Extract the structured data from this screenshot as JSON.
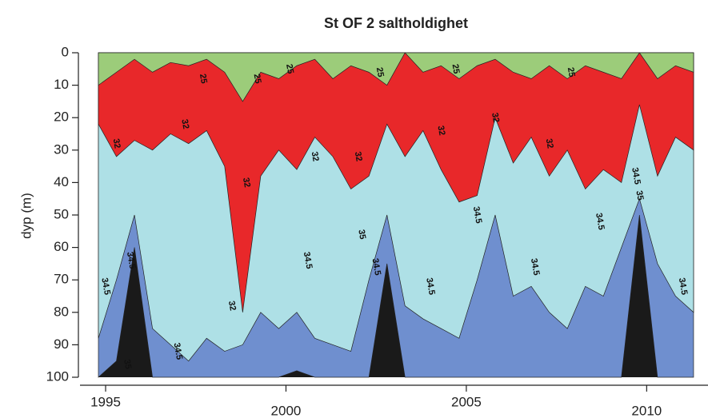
{
  "chart_data": {
    "type": "contour",
    "title": "St OF 2 saltholdighet",
    "y_label": "dyp (m)",
    "x": [
      1994.8,
      1995.3,
      1995.8,
      1996.3,
      1996.8,
      1997.3,
      1997.8,
      1998.3,
      1998.8,
      1999.3,
      1999.8,
      2000.3,
      2000.8,
      2001.3,
      2001.8,
      2002.3,
      2002.8,
      2003.3,
      2003.8,
      2004.3,
      2004.8,
      2005.3,
      2005.8,
      2006.3,
      2006.8,
      2007.3,
      2007.8,
      2008.3,
      2008.8,
      2009.3,
      2009.8,
      2010.3,
      2010.8,
      2011.3
    ],
    "below_color": "#1a1a1a",
    "series": [
      {
        "name": "35",
        "color": "#6f8fcf",
        "values": [
          100,
          95,
          60,
          100,
          100,
          100,
          100,
          100,
          100,
          100,
          100,
          98,
          100,
          100,
          100,
          100,
          65,
          100,
          100,
          100,
          100,
          100,
          100,
          100,
          100,
          100,
          100,
          100,
          100,
          100,
          50,
          100,
          100,
          100
        ]
      },
      {
        "name": "34.5",
        "color": "#aee0e6",
        "values": [
          88,
          70,
          50,
          85,
          90,
          95,
          88,
          92,
          90,
          80,
          85,
          80,
          88,
          90,
          92,
          70,
          50,
          78,
          82,
          85,
          88,
          70,
          50,
          75,
          72,
          80,
          85,
          72,
          75,
          60,
          45,
          65,
          75,
          80
        ]
      },
      {
        "name": "32",
        "color": "#e8282a",
        "values": [
          22,
          32,
          27,
          30,
          25,
          28,
          24,
          35,
          80,
          38,
          30,
          36,
          26,
          32,
          42,
          38,
          22,
          32,
          24,
          36,
          46,
          44,
          20,
          34,
          26,
          38,
          30,
          42,
          36,
          40,
          16,
          38,
          26,
          30
        ]
      },
      {
        "name": "25",
        "color": "#9ccc7a",
        "values": [
          10,
          6,
          2,
          6,
          3,
          4,
          2,
          6,
          15,
          6,
          8,
          4,
          2,
          8,
          4,
          6,
          10,
          0,
          6,
          4,
          8,
          4,
          2,
          6,
          8,
          4,
          8,
          4,
          6,
          8,
          0,
          8,
          4,
          6
        ]
      }
    ],
    "contour_labels": [
      {
        "x": 1997.7,
        "y": 8,
        "level": 25
      },
      {
        "x": 1999.2,
        "y": 8,
        "level": 25
      },
      {
        "x": 2000.1,
        "y": 5,
        "level": 25
      },
      {
        "x": 2002.6,
        "y": 6,
        "level": 25
      },
      {
        "x": 2004.7,
        "y": 5,
        "level": 25
      },
      {
        "x": 2007.9,
        "y": 6,
        "level": 25
      },
      {
        "x": 1995.3,
        "y": 28,
        "level": 32
      },
      {
        "x": 1997.2,
        "y": 22,
        "level": 32
      },
      {
        "x": 1998.9,
        "y": 40,
        "level": 32
      },
      {
        "x": 2000.8,
        "y": 32,
        "level": 32
      },
      {
        "x": 2002.0,
        "y": 32,
        "level": 32
      },
      {
        "x": 2004.3,
        "y": 24,
        "level": 32
      },
      {
        "x": 2005.8,
        "y": 20,
        "level": 32
      },
      {
        "x": 2007.3,
        "y": 28,
        "level": 32
      },
      {
        "x": 1998.5,
        "y": 78,
        "level": 32
      },
      {
        "x": 1995.0,
        "y": 72,
        "level": 34.5
      },
      {
        "x": 1995.7,
        "y": 64,
        "level": 34.5
      },
      {
        "x": 1997.0,
        "y": 92,
        "level": 34.5
      },
      {
        "x": 2000.6,
        "y": 64,
        "level": 34.5
      },
      {
        "x": 2002.5,
        "y": 66,
        "level": 34.5
      },
      {
        "x": 2004.0,
        "y": 72,
        "level": 34.5
      },
      {
        "x": 2005.3,
        "y": 50,
        "level": 34.5
      },
      {
        "x": 2006.9,
        "y": 66,
        "level": 34.5
      },
      {
        "x": 2008.7,
        "y": 52,
        "level": 34.5
      },
      {
        "x": 2009.7,
        "y": 38,
        "level": 34.5
      },
      {
        "x": 2011.0,
        "y": 72,
        "level": 34.5
      },
      {
        "x": 1995.6,
        "y": 96,
        "level": 35
      },
      {
        "x": 2002.1,
        "y": 56,
        "level": 35
      },
      {
        "x": 2009.8,
        "y": 44,
        "level": 35
      }
    ],
    "xlim": [
      1994.29,
      2011.7
    ],
    "xticks": [
      1995,
      2000,
      2005,
      2010
    ],
    "ylim": [
      100,
      0
    ],
    "yticks": [
      0,
      10,
      20,
      30,
      40,
      50,
      60,
      70,
      80,
      90,
      100
    ]
  }
}
